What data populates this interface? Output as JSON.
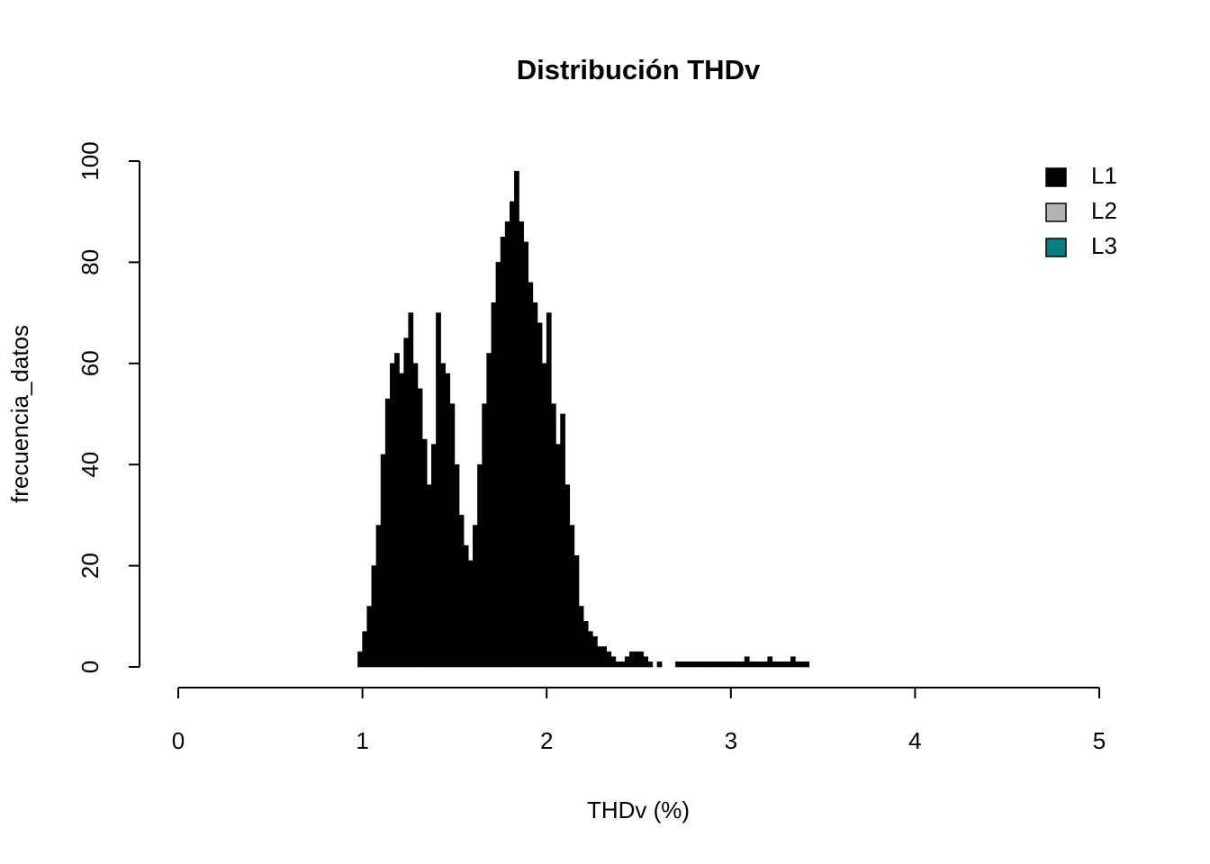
{
  "chart_data": {
    "type": "histogram",
    "title": "Distribución THDv",
    "xlabel": "THDv (%)",
    "ylabel": "frecuencia_datos",
    "bins": [
      0.95,
      0.975,
      1,
      1.025,
      1.05,
      1.075,
      1.1,
      1.125,
      1.15,
      1.175,
      1.2,
      1.225,
      1.25,
      1.275,
      1.3,
      1.325,
      1.35,
      1.375,
      1.4,
      1.425,
      1.45,
      1.475,
      1.5,
      1.525,
      1.55,
      1.575,
      1.6,
      1.625,
      1.65,
      1.675,
      1.7,
      1.725,
      1.75,
      1.775,
      1.8,
      1.825,
      1.85,
      1.875,
      1.9,
      1.925,
      1.95,
      1.975,
      2,
      2.025,
      2.05,
      2.075,
      2.1,
      2.125,
      2.15,
      2.175,
      2.2,
      2.225,
      2.25,
      2.275,
      2.3,
      2.325,
      2.35,
      2.375,
      2.4,
      2.425,
      2.45,
      2.475,
      2.5,
      2.525,
      2.55,
      2.575,
      2.6,
      2.625,
      2.65,
      2.675,
      2.7,
      2.725,
      2.75,
      2.775,
      2.8,
      2.825,
      2.85,
      2.875,
      2.9,
      2.925,
      2.95,
      2.975,
      3,
      3.025,
      3.05,
      3.075,
      3.1,
      3.125,
      3.15,
      3.175,
      3.2,
      3.225,
      3.25,
      3.275,
      3.3,
      3.325,
      3.35,
      3.375,
      3.4,
      3.425,
      3.45
    ],
    "values": [
      0,
      3,
      7,
      12,
      20,
      28,
      42,
      53,
      60,
      62,
      58,
      65,
      70,
      60,
      55,
      45,
      36,
      44,
      70,
      60,
      58,
      52,
      40,
      30,
      24,
      21,
      28,
      40,
      52,
      62,
      72,
      80,
      85,
      88,
      92,
      98,
      88,
      84,
      76,
      72,
      68,
      60,
      70,
      52,
      44,
      50,
      36,
      28,
      22,
      12,
      9,
      7,
      6,
      4,
      4,
      3,
      2,
      1,
      1,
      2,
      3,
      3,
      3,
      2,
      1,
      0,
      1,
      0,
      0,
      0,
      1,
      1,
      1,
      1,
      1,
      1,
      1,
      1,
      1,
      1,
      1,
      1,
      1,
      1,
      1,
      2,
      1,
      1,
      1,
      1,
      2,
      1,
      1,
      1,
      1,
      2,
      1,
      1,
      1,
      0
    ],
    "color": "#000000",
    "legend": [
      {
        "name": "L1",
        "color": "#000000"
      },
      {
        "name": "L2",
        "color": "#b3b3b3"
      },
      {
        "name": "L3",
        "color": "#008080"
      }
    ],
    "xlim": [
      0,
      5
    ],
    "xticks": [
      0,
      1,
      2,
      3,
      4,
      5
    ],
    "ylim": [
      0,
      100
    ],
    "yticks": [
      0,
      20,
      40,
      60,
      80,
      100
    ]
  }
}
